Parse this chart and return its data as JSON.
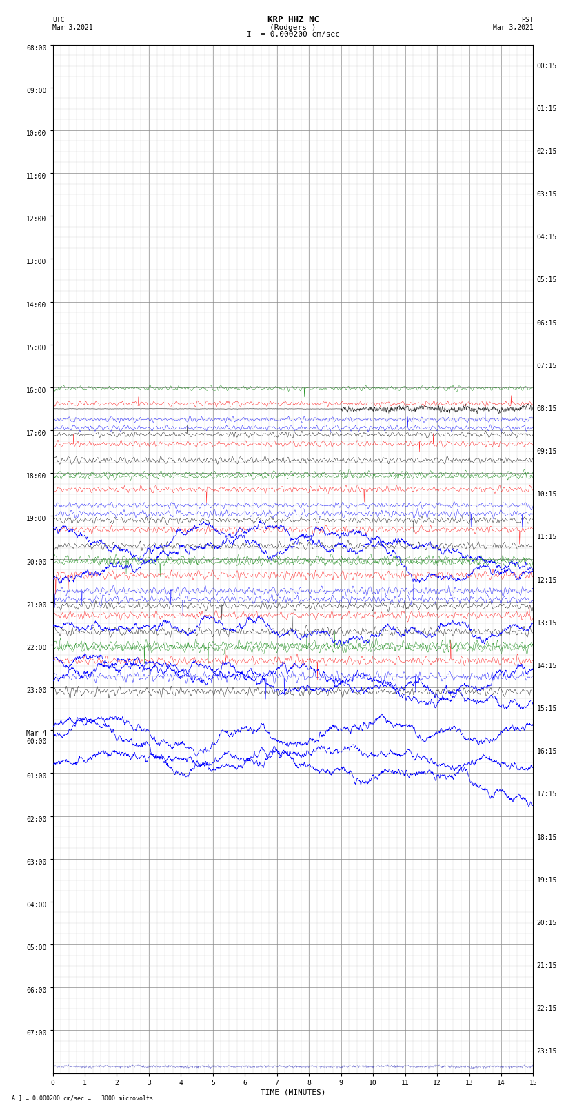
{
  "title_line1": "KRP HHZ NC",
  "title_line2": "(Rodgers )",
  "title_line3": "I  = 0.000200 cm/sec",
  "left_label_top": "UTC",
  "left_label_date": "Mar 3,2021",
  "right_label_top": "PST",
  "right_label_date": "Mar 3,2021",
  "bottom_xlabel": "TIME (MINUTES)",
  "scale_label": "A ] = 0.000200 cm/sec =   3000 microvolts",
  "utc_times": [
    "08:00",
    "09:00",
    "10:00",
    "11:00",
    "12:00",
    "13:00",
    "14:00",
    "15:00",
    "16:00",
    "17:00",
    "18:00",
    "19:00",
    "20:00",
    "21:00",
    "22:00",
    "23:00",
    "Mar 4\n00:00",
    "01:00",
    "02:00",
    "03:00",
    "04:00",
    "05:00",
    "06:00",
    "07:00"
  ],
  "pst_times": [
    "00:15",
    "01:15",
    "02:15",
    "03:15",
    "04:15",
    "05:15",
    "06:15",
    "07:15",
    "08:15",
    "09:15",
    "10:15",
    "11:15",
    "12:15",
    "13:15",
    "14:15",
    "15:15",
    "16:15",
    "17:15",
    "18:15",
    "19:15",
    "20:15",
    "21:15",
    "22:15",
    "23:15"
  ],
  "num_rows": 24,
  "num_minutes": 15,
  "background_color": "#ffffff",
  "grid_color_major": "#888888",
  "grid_color_minor": "#cccccc",
  "trace_colors": [
    "#000000",
    "#ff0000",
    "#0000ff",
    "#008000"
  ],
  "title_fontsize": 9,
  "tick_fontsize": 7,
  "label_fontsize": 8,
  "fig_width": 8.5,
  "fig_height": 16.13
}
